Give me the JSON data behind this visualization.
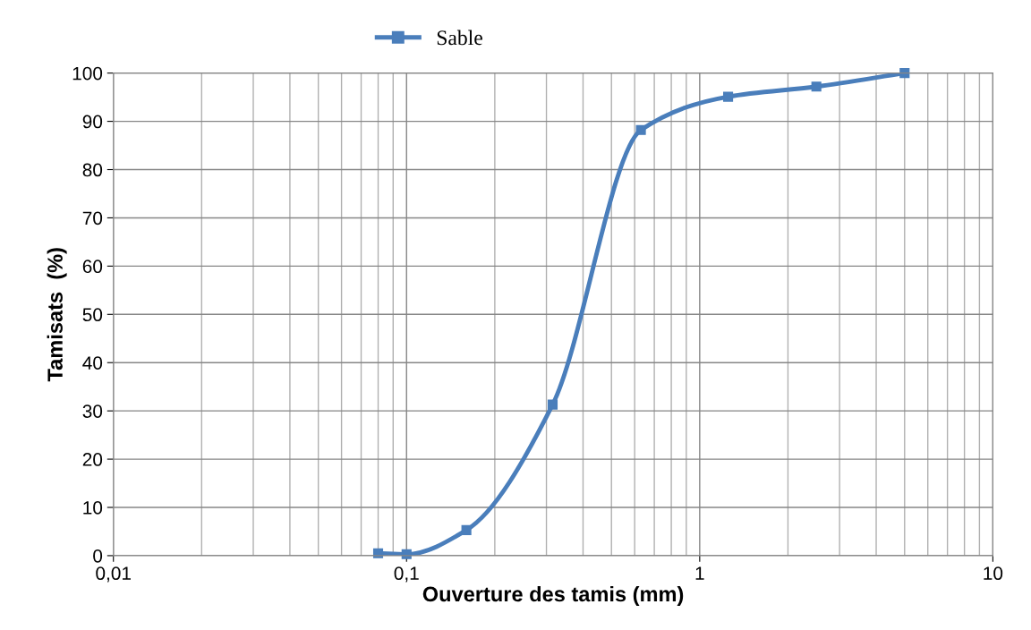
{
  "chart_data": {
    "type": "line",
    "xlabel": "Ouverture des tamis (mm)",
    "ylabel": "Tamisats  (%)",
    "log": "x",
    "x": [
      0.08,
      0.1,
      0.16,
      0.315,
      0.63,
      1.25,
      2.5,
      5
    ],
    "series": [
      {
        "name": "Sable",
        "color": "#4a7ebb",
        "values": [
          0.5,
          0.3,
          5.3,
          31.3,
          88.2,
          95.1,
          97.2,
          100
        ]
      }
    ],
    "xlim": [
      0.01,
      10
    ],
    "xticks": [
      {
        "value": 0.01,
        "label": "0,01"
      },
      {
        "value": 0.1,
        "label": "0,1"
      },
      1,
      10
    ],
    "ylim": [
      0,
      100
    ],
    "yticks": [
      0,
      10,
      20,
      30,
      40,
      50,
      60,
      70,
      80,
      90,
      100
    ],
    "grid": true,
    "legend": "top",
    "marker": "square",
    "line_style": "solid"
  }
}
